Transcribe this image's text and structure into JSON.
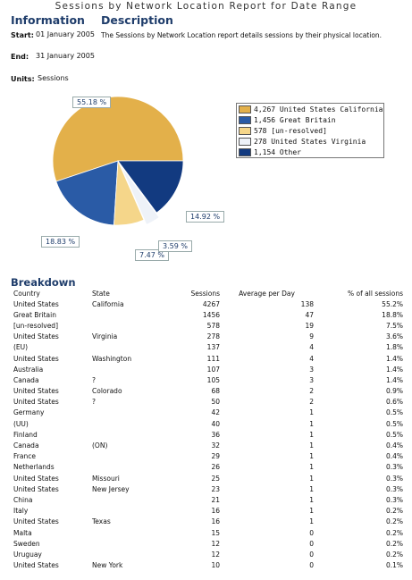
{
  "report_title": "Sessions by Network Location Report for Date Range",
  "info": {
    "heading": "Information",
    "start_label": "Start:",
    "start_value": "01 January 2005",
    "end_label": "End:",
    "end_value": "31 January 2005",
    "units_label": "Units:",
    "units_value": "Sessions"
  },
  "description": {
    "heading": "Description",
    "text": "The Sessions by Network Location report details sessions by their physical location."
  },
  "chart_data": {
    "type": "pie",
    "slices": [
      {
        "label": "United States California",
        "value": 4267,
        "percent_label": "55.18 %",
        "color": "#e3b04a"
      },
      {
        "label": "Great Britain",
        "value": 1456,
        "percent_label": "18.83 %",
        "color": "#2a5ba6"
      },
      {
        "label": "[un-resolved]",
        "value": 578,
        "percent_label": "7.47 %",
        "color": "#f5d68a"
      },
      {
        "label": "United States Virginia",
        "value": 278,
        "percent_label": "3.59 %",
        "color": "#eef2f8"
      },
      {
        "label": "Other",
        "value": 1154,
        "percent_label": "14.92 %",
        "color": "#123a80"
      }
    ],
    "legend": [
      "4,267 United States California",
      "1,456 Great Britain",
      "578 [un-resolved]",
      "278 United States Virginia",
      "1,154 Other"
    ],
    "legend_position": "right"
  },
  "breakdown": {
    "heading": "Breakdown",
    "columns": [
      "Country",
      "State",
      "Sessions",
      "Average per Day",
      "% of all sessions"
    ],
    "rows": [
      [
        "United States",
        "California",
        "4267",
        "138",
        "55.2%"
      ],
      [
        "Great Britain",
        "",
        "1456",
        "47",
        "18.8%"
      ],
      [
        "[un-resolved]",
        "",
        "578",
        "19",
        "7.5%"
      ],
      [
        "United States",
        "Virginia",
        "278",
        "9",
        "3.6%"
      ],
      [
        "(EU)",
        "",
        "137",
        "4",
        "1.8%"
      ],
      [
        "United States",
        "Washington",
        "111",
        "4",
        "1.4%"
      ],
      [
        "Australia",
        "",
        "107",
        "3",
        "1.4%"
      ],
      [
        "Canada",
        "?",
        "105",
        "3",
        "1.4%"
      ],
      [
        "United States",
        "Colorado",
        "68",
        "2",
        "0.9%"
      ],
      [
        "United States",
        "?",
        "50",
        "2",
        "0.6%"
      ],
      [
        "Germany",
        "",
        "42",
        "1",
        "0.5%"
      ],
      [
        "(UU)",
        "",
        "40",
        "1",
        "0.5%"
      ],
      [
        "Finland",
        "",
        "36",
        "1",
        "0.5%"
      ],
      [
        "Canada",
        "(ON)",
        "32",
        "1",
        "0.4%"
      ],
      [
        "France",
        "",
        "29",
        "1",
        "0.4%"
      ],
      [
        "Netherlands",
        "",
        "26",
        "1",
        "0.3%"
      ],
      [
        "United States",
        "Missouri",
        "25",
        "1",
        "0.3%"
      ],
      [
        "United States",
        "New Jersey",
        "23",
        "1",
        "0.3%"
      ],
      [
        "China",
        "",
        "21",
        "1",
        "0.3%"
      ],
      [
        "Italy",
        "",
        "16",
        "1",
        "0.2%"
      ],
      [
        "United States",
        "Texas",
        "16",
        "1",
        "0.2%"
      ],
      [
        "Malta",
        "",
        "15",
        "0",
        "0.2%"
      ],
      [
        "Sweden",
        "",
        "12",
        "0",
        "0.2%"
      ],
      [
        "Uruguay",
        "",
        "12",
        "0",
        "0.2%"
      ],
      [
        "United States",
        "New York",
        "10",
        "0",
        "0.1%"
      ]
    ]
  }
}
